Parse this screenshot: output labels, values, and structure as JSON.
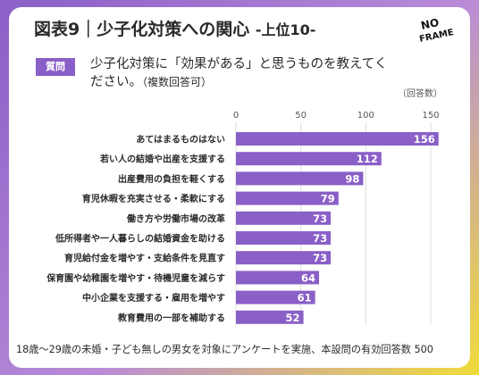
{
  "header": {
    "title": "図表9｜少子化対策への関心",
    "subtitle": "-上位10-",
    "logo_text_1": "NO",
    "logo_text_2": "FRAME"
  },
  "question": {
    "badge": "質問",
    "text": "少子化対策に「効果がある」と思うものを教えてください。",
    "note": "（複数回答可）"
  },
  "footer": "18歳〜29歳の未婚・子ども無しの男女を対象にアンケートを実施、本設問の有効回答数 500",
  "colors": {
    "bar": "#8a5fc7",
    "accent": "#8a5fc7",
    "highlight": "#f0dc3a"
  },
  "chart_data": {
    "type": "bar",
    "orientation": "horizontal",
    "unit_label": "（回答数）",
    "xlim": [
      0,
      150
    ],
    "ticks": [
      0,
      50,
      100,
      150
    ],
    "categories": [
      "あてはまるものはない",
      "若い人の結婚や出産を支援する",
      "出産費用の負担を軽くする",
      "育児休暇を充実させる・柔軟にする",
      "働き方や労働市場の改革",
      "低所得者や一人暮らしの結婚資金を助ける",
      "育児給付金を増やす・支給条件を見直す",
      "保育園や幼稚園を増やす・待機児童を減らす",
      "中小企業を支援する・雇用を増やす",
      "教育費用の一部を補助する"
    ],
    "values": [
      156,
      112,
      98,
      79,
      73,
      73,
      73,
      64,
      61,
      52
    ],
    "grid": true,
    "legend": "none"
  }
}
